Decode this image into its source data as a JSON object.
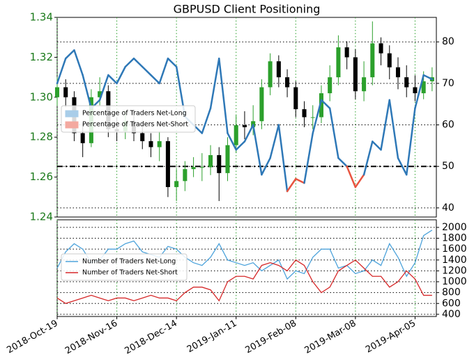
{
  "chart_data": [
    {
      "type": "candlestick",
      "title": "GBPUSD Client Positioning",
      "x": [
        "2018-10-19",
        "2018-10-23",
        "2018-10-27",
        "2018-10-31",
        "2018-11-04",
        "2018-11-08",
        "2018-11-12",
        "2018-11-16",
        "2018-11-20",
        "2018-11-24",
        "2018-11-28",
        "2018-12-02",
        "2018-12-06",
        "2018-12-10",
        "2018-12-14",
        "2018-12-18",
        "2018-12-22",
        "2018-12-26",
        "2018-12-30",
        "2019-01-03",
        "2019-01-07",
        "2019-01-11",
        "2019-01-15",
        "2019-01-19",
        "2019-01-23",
        "2019-01-27",
        "2019-01-31",
        "2019-02-04",
        "2019-02-08",
        "2019-02-12",
        "2019-02-16",
        "2019-02-20",
        "2019-02-24",
        "2019-02-28",
        "2019-03-04",
        "2019-03-08",
        "2019-03-12",
        "2019-03-16",
        "2019-03-20",
        "2019-03-24",
        "2019-03-28",
        "2019-04-01",
        "2019-04-05",
        "2019-04-09",
        "2019-04-13"
      ],
      "open": [
        1.3,
        1.305,
        1.3,
        1.282,
        1.277,
        1.3,
        1.303,
        1.284,
        1.283,
        1.288,
        1.282,
        1.278,
        1.275,
        1.278,
        1.255,
        1.258,
        1.264,
        1.265,
        1.265,
        1.271,
        1.262,
        1.276,
        1.286,
        1.285,
        1.288,
        1.305,
        1.318,
        1.31,
        1.305,
        1.294,
        1.29,
        1.29,
        1.302,
        1.31,
        1.325,
        1.32,
        1.303,
        1.31,
        1.327,
        1.322,
        1.315,
        1.31,
        1.305,
        1.302,
        1.308
      ],
      "high": [
        1.31,
        1.309,
        1.303,
        1.287,
        1.304,
        1.31,
        1.306,
        1.29,
        1.293,
        1.292,
        1.286,
        1.282,
        1.283,
        1.28,
        1.264,
        1.268,
        1.27,
        1.272,
        1.276,
        1.275,
        1.28,
        1.291,
        1.293,
        1.296,
        1.309,
        1.322,
        1.321,
        1.314,
        1.308,
        1.298,
        1.296,
        1.306,
        1.316,
        1.331,
        1.328,
        1.324,
        1.318,
        1.338,
        1.33,
        1.326,
        1.32,
        1.316,
        1.311,
        1.313,
        1.315
      ],
      "low": [
        1.296,
        1.295,
        1.278,
        1.27,
        1.275,
        1.296,
        1.28,
        1.278,
        1.279,
        1.278,
        1.274,
        1.27,
        1.268,
        1.25,
        1.248,
        1.253,
        1.26,
        1.258,
        1.261,
        1.248,
        1.258,
        1.272,
        1.279,
        1.281,
        1.284,
        1.301,
        1.305,
        1.3,
        1.29,
        1.285,
        1.284,
        1.287,
        1.298,
        1.306,
        1.314,
        1.299,
        1.298,
        1.306,
        1.316,
        1.309,
        1.304,
        1.3,
        1.298,
        1.299,
        1.303
      ],
      "close": [
        1.305,
        1.3,
        1.282,
        1.277,
        1.3,
        1.303,
        1.284,
        1.283,
        1.288,
        1.282,
        1.278,
        1.275,
        1.278,
        1.255,
        1.258,
        1.264,
        1.265,
        1.265,
        1.271,
        1.262,
        1.276,
        1.286,
        1.285,
        1.288,
        1.305,
        1.318,
        1.31,
        1.305,
        1.294,
        1.29,
        1.29,
        1.302,
        1.31,
        1.325,
        1.32,
        1.303,
        1.31,
        1.327,
        1.322,
        1.315,
        1.31,
        1.305,
        1.302,
        1.308,
        1.31
      ],
      "up_color": "#2ca02c",
      "down_color": "#000000",
      "xlim": [
        "2018-10-19",
        "2019-04-15"
      ],
      "xticks": [
        {
          "value": "2018-10-19",
          "label": "2018-Oct-19"
        },
        {
          "value": "2018-11-16",
          "label": "2018-Nov-16"
        },
        {
          "value": "2018-12-14",
          "label": "2018-Dec-14"
        },
        {
          "value": "2019-01-11",
          "label": "2019-Jan-11"
        },
        {
          "value": "2019-02-08",
          "label": "2019-Feb-08"
        },
        {
          "value": "2019-03-08",
          "label": "2019-Mar-08"
        },
        {
          "value": "2019-04-05",
          "label": "2019-Apr-05"
        }
      ],
      "ylim": [
        1.24,
        1.34
      ],
      "yticks": [
        1.24,
        1.26,
        1.28,
        {
          "value": 1.3,
          "label": "1.30"
        },
        1.32,
        1.34
      ],
      "ytick_color": "#1a7a1a",
      "y2lim": [
        37.8,
        85.9
      ],
      "y2ticks": [
        40,
        50,
        60,
        70,
        80
      ],
      "overlay": {
        "axis": "y2",
        "color": "#2e78b7",
        "below_color": "#e8543f",
        "threshold": 50,
        "values": [
          70,
          76,
          78,
          72,
          64,
          66,
          72,
          70,
          74,
          76,
          74,
          72,
          70,
          76,
          74,
          62,
          60,
          58,
          64,
          76,
          58,
          54,
          56,
          60,
          48,
          52,
          60,
          44,
          47,
          46,
          58,
          66,
          64,
          52,
          50,
          45,
          48,
          56,
          54,
          66,
          52,
          48,
          64,
          72,
          71
        ]
      },
      "legend": [
        {
          "name": "Percentage of Traders Net-Long",
          "color": "#a9cde9"
        },
        {
          "name": "Percentage of Traders Net-Short",
          "color": "#f4a9a0"
        }
      ],
      "grid": true
    },
    {
      "type": "line",
      "ylim": [
        360,
        2140
      ],
      "yticks": [
        400,
        600,
        800,
        1000,
        1200,
        1400,
        1600,
        1800,
        2000
      ],
      "series": [
        {
          "name": "Number of Traders Net-Long",
          "color": "#4da3db",
          "values": [
            1250,
            1550,
            1700,
            1600,
            1350,
            1400,
            1600,
            1600,
            1700,
            1750,
            1550,
            1500,
            1450,
            1650,
            1600,
            1450,
            1350,
            1300,
            1450,
            1700,
            1400,
            1350,
            1300,
            1350,
            1200,
            1300,
            1400,
            1050,
            1200,
            1150,
            1450,
            1600,
            1600,
            1250,
            1300,
            1150,
            1200,
            1400,
            1300,
            1700,
            1450,
            1100,
            1350,
            1850,
            1950
          ]
        },
        {
          "name": "Number of Traders Net-Short",
          "color": "#d62728",
          "values": [
            700,
            600,
            650,
            700,
            750,
            700,
            650,
            700,
            700,
            650,
            700,
            750,
            700,
            700,
            650,
            800,
            900,
            900,
            850,
            650,
            1000,
            1100,
            1100,
            1050,
            1300,
            1350,
            1300,
            1200,
            1400,
            1300,
            1000,
            800,
            900,
            1200,
            1300,
            1400,
            1250,
            1100,
            1100,
            900,
            1000,
            1200,
            1050,
            750,
            750
          ]
        }
      ],
      "grid": true
    }
  ]
}
